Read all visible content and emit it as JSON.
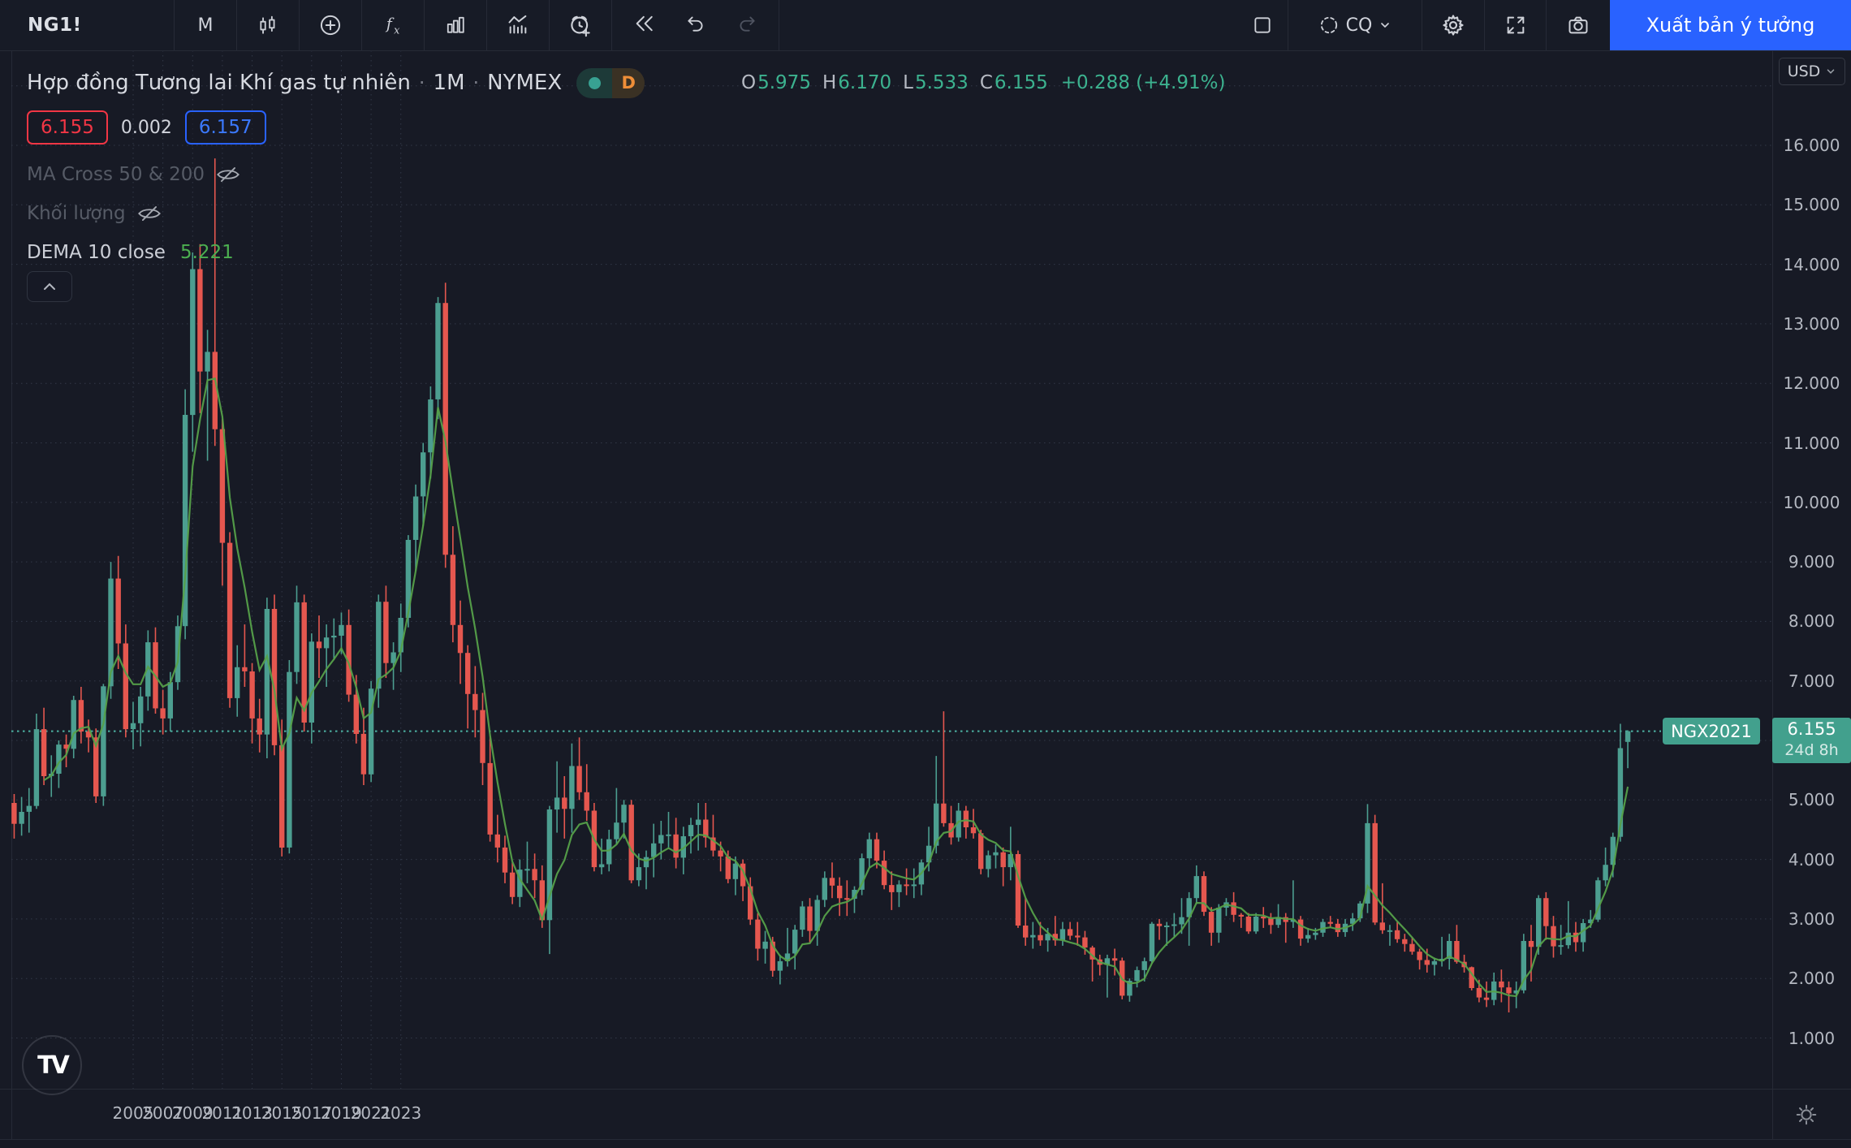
{
  "toolbar": {
    "symbol": "NG1!",
    "timeframe_label": "M",
    "layout_name": "CQ",
    "publish_button": "Xuất bản ý tưởng"
  },
  "legend": {
    "title": {
      "name": "Hợp đồng Tương lai Khí gas tự nhiên",
      "dot": "·",
      "interval": "1M",
      "exchange": "NYMEX",
      "d_badge": "D"
    },
    "ohlc": {
      "o_label": "O",
      "o": "5.975",
      "h_label": "H",
      "h": "6.170",
      "l_label": "L",
      "l": "5.533",
      "c_label": "C",
      "c": "6.155",
      "change": "+0.288 (+4.91%)"
    },
    "quote": {
      "bid": "6.155",
      "spread": "0.002",
      "ask": "6.157"
    },
    "indicators": [
      {
        "label": "MA Cross 50 & 200",
        "hidden": true
      },
      {
        "label": "Khối lượng",
        "hidden": true
      },
      {
        "label": "DEMA 10 close",
        "value": "5.221",
        "hidden": false
      }
    ]
  },
  "price_axis": {
    "currency": "USD",
    "ticks": [
      "16.000",
      "15.000",
      "14.000",
      "13.000",
      "12.000",
      "11.000",
      "10.000",
      "9.000",
      "8.000",
      "7.000",
      "6.000",
      "5.000",
      "4.000",
      "3.000",
      "2.000",
      "1.000"
    ],
    "current_price_label": "6.155",
    "countdown": "24d 8h"
  },
  "time_axis": {
    "years": [
      "2005",
      "2007",
      "2009",
      "2011",
      "2013",
      "2015",
      "2017",
      "2019",
      "2021",
      "2023"
    ]
  },
  "chart_overlay": {
    "contract_label": "NGX2021"
  },
  "branding": {
    "logo_text": "TV"
  },
  "colors": {
    "up": "#4c9e90",
    "down": "#e5574f",
    "dema_line": "#55a049",
    "current_line": "#4cb2a3",
    "badge": "#42a08d",
    "accent_blue": "#2962ff",
    "bid_red": "#f23645",
    "value_teal": "#3cb28f"
  },
  "chart_data": {
    "type": "candlestick",
    "title": "Hợp đồng Tương lai Khí gas tự nhiên",
    "symbol": "NG1!",
    "exchange": "NYMEX",
    "interval": "1M",
    "unit": "USD",
    "start_month": "2003-09",
    "ohlc": [
      [
        4.95,
        5.1,
        4.35,
        4.6
      ],
      [
        4.6,
        5.05,
        4.4,
        4.8
      ],
      [
        4.8,
        5.2,
        4.45,
        4.9
      ],
      [
        4.9,
        6.45,
        4.85,
        6.19
      ],
      [
        6.19,
        6.55,
        5.25,
        5.4
      ],
      [
        5.4,
        5.75,
        5.05,
        5.44
      ],
      [
        5.44,
        6.0,
        5.2,
        5.93
      ],
      [
        5.93,
        6.1,
        5.55,
        5.86
      ],
      [
        5.86,
        6.75,
        5.7,
        6.68
      ],
      [
        6.68,
        6.9,
        5.95,
        6.15
      ],
      [
        6.15,
        6.35,
        5.8,
        6.05
      ],
      [
        6.05,
        6.2,
        4.95,
        5.06
      ],
      [
        5.06,
        6.95,
        4.9,
        6.91
      ],
      [
        6.91,
        9.0,
        6.7,
        8.72
      ],
      [
        8.72,
        9.1,
        7.2,
        7.63
      ],
      [
        7.63,
        7.95,
        6.05,
        6.19
      ],
      [
        6.19,
        6.65,
        5.85,
        6.29
      ],
      [
        6.29,
        6.9,
        5.9,
        6.74
      ],
      [
        6.74,
        7.85,
        6.5,
        7.65
      ],
      [
        7.65,
        7.9,
        6.45,
        6.54
      ],
      [
        6.54,
        6.85,
        6.1,
        6.37
      ],
      [
        6.37,
        7.15,
        6.15,
        6.98
      ],
      [
        6.98,
        8.1,
        6.85,
        7.92
      ],
      [
        7.92,
        11.9,
        7.7,
        11.47
      ],
      [
        11.47,
        14.2,
        10.85,
        13.92
      ],
      [
        13.92,
        14.34,
        11.5,
        12.2
      ],
      [
        12.2,
        12.9,
        10.7,
        12.53
      ],
      [
        12.53,
        15.78,
        10.95,
        11.23
      ],
      [
        11.23,
        11.4,
        8.6,
        9.32
      ],
      [
        9.32,
        9.5,
        6.55,
        6.71
      ],
      [
        6.71,
        7.6,
        6.4,
        7.23
      ],
      [
        7.23,
        7.95,
        6.9,
        7.16
      ],
      [
        7.16,
        7.3,
        5.95,
        6.37
      ],
      [
        6.37,
        6.7,
        5.8,
        6.1
      ],
      [
        6.1,
        8.4,
        5.7,
        8.21
      ],
      [
        8.21,
        8.45,
        5.75,
        5.92
      ],
      [
        5.92,
        6.35,
        4.05,
        4.2
      ],
      [
        4.2,
        7.35,
        4.1,
        7.15
      ],
      [
        7.15,
        8.6,
        6.95,
        8.32
      ],
      [
        8.32,
        8.45,
        6.15,
        6.3
      ],
      [
        6.3,
        7.8,
        5.95,
        7.66
      ],
      [
        7.66,
        8.1,
        7.05,
        7.55
      ],
      [
        7.55,
        7.95,
        6.9,
        7.73
      ],
      [
        7.73,
        8.05,
        7.35,
        7.76
      ],
      [
        7.76,
        8.15,
        7.45,
        7.94
      ],
      [
        7.94,
        8.2,
        6.65,
        6.77
      ],
      [
        6.77,
        7.1,
        5.95,
        6.11
      ],
      [
        6.11,
        6.55,
        5.25,
        5.43
      ],
      [
        5.43,
        7.0,
        5.3,
        6.87
      ],
      [
        6.87,
        8.45,
        6.55,
        8.33
      ],
      [
        8.33,
        8.6,
        7.05,
        7.3
      ],
      [
        7.3,
        7.65,
        6.85,
        7.48
      ],
      [
        7.48,
        8.3,
        7.15,
        8.06
      ],
      [
        8.06,
        9.45,
        7.9,
        9.37
      ],
      [
        9.37,
        10.3,
        8.85,
        10.1
      ],
      [
        10.1,
        11.0,
        9.6,
        10.84
      ],
      [
        10.84,
        11.95,
        10.4,
        11.73
      ],
      [
        11.73,
        13.45,
        11.4,
        13.35
      ],
      [
        13.35,
        13.69,
        8.9,
        9.12
      ],
      [
        9.12,
        9.6,
        7.65,
        7.94
      ],
      [
        7.94,
        8.35,
        6.95,
        7.47
      ],
      [
        7.47,
        7.6,
        6.2,
        6.78
      ],
      [
        6.78,
        7.25,
        6.05,
        6.51
      ],
      [
        6.51,
        6.8,
        5.25,
        5.62
      ],
      [
        5.62,
        6.1,
        4.3,
        4.42
      ],
      [
        4.42,
        4.75,
        3.95,
        4.2
      ],
      [
        4.2,
        4.4,
        3.6,
        3.78
      ],
      [
        3.78,
        3.95,
        3.25,
        3.37
      ],
      [
        3.37,
        4.0,
        3.2,
        3.83
      ],
      [
        3.83,
        4.3,
        3.6,
        3.84
      ],
      [
        3.84,
        4.1,
        3.35,
        3.65
      ],
      [
        3.65,
        3.9,
        2.85,
        2.98
      ],
      [
        2.98,
        4.9,
        2.41,
        4.84
      ],
      [
        4.84,
        5.65,
        4.45,
        5.04
      ],
      [
        5.04,
        5.4,
        4.35,
        4.85
      ],
      [
        4.85,
        5.95,
        4.45,
        5.57
      ],
      [
        5.57,
        6.05,
        5.0,
        5.13
      ],
      [
        5.13,
        5.6,
        4.65,
        4.82
      ],
      [
        4.82,
        4.95,
        3.8,
        3.87
      ],
      [
        3.87,
        4.35,
        3.75,
        3.92
      ],
      [
        3.92,
        4.5,
        3.8,
        4.34
      ],
      [
        4.34,
        5.2,
        4.25,
        4.62
      ],
      [
        4.62,
        5.0,
        4.35,
        4.92
      ],
      [
        4.92,
        5.0,
        3.6,
        3.65
      ],
      [
        3.65,
        4.1,
        3.55,
        3.87
      ],
      [
        3.87,
        4.15,
        3.5,
        4.04
      ],
      [
        4.04,
        4.6,
        3.7,
        4.27
      ],
      [
        4.27,
        4.65,
        4.0,
        4.41
      ],
      [
        4.41,
        4.8,
        4.2,
        4.42
      ],
      [
        4.42,
        4.7,
        3.85,
        4.03
      ],
      [
        4.03,
        4.55,
        3.75,
        4.39
      ],
      [
        4.39,
        4.7,
        4.1,
        4.58
      ],
      [
        4.58,
        4.95,
        4.15,
        4.67
      ],
      [
        4.67,
        4.95,
        4.2,
        4.37
      ],
      [
        4.37,
        4.75,
        4.05,
        4.15
      ],
      [
        4.15,
        4.3,
        3.8,
        4.05
      ],
      [
        4.05,
        4.15,
        3.6,
        3.67
      ],
      [
        3.67,
        4.05,
        3.4,
        3.93
      ],
      [
        3.93,
        4.0,
        3.3,
        3.55
      ],
      [
        3.55,
        3.7,
        2.9,
        2.99
      ],
      [
        2.99,
        3.1,
        2.3,
        2.5
      ],
      [
        2.5,
        2.8,
        2.25,
        2.62
      ],
      [
        2.62,
        2.7,
        2.03,
        2.13
      ],
      [
        2.13,
        2.4,
        1.9,
        2.29
      ],
      [
        2.29,
        2.85,
        2.2,
        2.42
      ],
      [
        2.42,
        2.9,
        2.15,
        2.82
      ],
      [
        2.82,
        3.3,
        2.7,
        3.21
      ],
      [
        3.21,
        3.35,
        2.6,
        2.8
      ],
      [
        2.8,
        3.4,
        2.55,
        3.32
      ],
      [
        3.32,
        3.8,
        3.2,
        3.69
      ],
      [
        3.69,
        3.95,
        3.35,
        3.56
      ],
      [
        3.56,
        3.7,
        3.05,
        3.35
      ],
      [
        3.35,
        3.65,
        3.05,
        3.34
      ],
      [
        3.34,
        3.55,
        3.1,
        3.49
      ],
      [
        3.49,
        4.1,
        3.4,
        4.02
      ],
      [
        4.02,
        4.45,
        3.85,
        4.34
      ],
      [
        4.34,
        4.45,
        3.85,
        3.98
      ],
      [
        3.98,
        4.15,
        3.5,
        3.57
      ],
      [
        3.57,
        3.8,
        3.15,
        3.45
      ],
      [
        3.45,
        3.65,
        3.2,
        3.58
      ],
      [
        3.58,
        3.85,
        3.4,
        3.56
      ],
      [
        3.56,
        3.85,
        3.35,
        3.58
      ],
      [
        3.58,
        4.0,
        3.4,
        3.95
      ],
      [
        3.95,
        4.55,
        3.8,
        4.23
      ],
      [
        4.23,
        5.74,
        4.1,
        4.94
      ],
      [
        4.94,
        6.49,
        4.55,
        4.61
      ],
      [
        4.61,
        4.9,
        4.25,
        4.37
      ],
      [
        4.37,
        4.95,
        4.3,
        4.82
      ],
      [
        4.82,
        4.9,
        4.35,
        4.54
      ],
      [
        4.54,
        4.85,
        4.35,
        4.44
      ],
      [
        4.44,
        4.5,
        3.75,
        3.84
      ],
      [
        3.84,
        4.15,
        3.7,
        4.07
      ],
      [
        4.07,
        4.25,
        3.85,
        4.12
      ],
      [
        4.12,
        4.2,
        3.55,
        3.87
      ],
      [
        3.87,
        4.55,
        3.65,
        4.09
      ],
      [
        4.09,
        4.15,
        2.85,
        2.89
      ],
      [
        2.89,
        3.35,
        2.55,
        2.69
      ],
      [
        2.69,
        2.95,
        2.5,
        2.73
      ],
      [
        2.73,
        2.95,
        2.55,
        2.64
      ],
      [
        2.64,
        2.85,
        2.45,
        2.75
      ],
      [
        2.75,
        3.05,
        2.55,
        2.64
      ],
      [
        2.64,
        2.95,
        2.55,
        2.83
      ],
      [
        2.83,
        2.95,
        2.65,
        2.72
      ],
      [
        2.72,
        2.95,
        2.55,
        2.69
      ],
      [
        2.69,
        2.8,
        2.4,
        2.52
      ],
      [
        2.52,
        2.55,
        1.95,
        2.32
      ],
      [
        2.32,
        2.4,
        2.05,
        2.23
      ],
      [
        2.23,
        2.4,
        1.68,
        2.34
      ],
      [
        2.34,
        2.5,
        2.05,
        2.3
      ],
      [
        2.3,
        2.35,
        1.65,
        1.71
      ],
      [
        1.71,
        2.0,
        1.61,
        1.96
      ],
      [
        1.96,
        2.2,
        1.85,
        2.14
      ],
      [
        2.14,
        2.35,
        1.95,
        2.29
      ],
      [
        2.29,
        2.95,
        2.25,
        2.92
      ],
      [
        2.92,
        3.0,
        2.65,
        2.88
      ],
      [
        2.88,
        2.95,
        2.55,
        2.89
      ],
      [
        2.89,
        3.1,
        2.7,
        2.91
      ],
      [
        2.91,
        3.35,
        2.75,
        3.03
      ],
      [
        3.03,
        3.45,
        2.55,
        3.35
      ],
      [
        3.35,
        3.9,
        3.25,
        3.72
      ],
      [
        3.72,
        3.8,
        3.05,
        3.12
      ],
      [
        3.12,
        3.2,
        2.55,
        2.77
      ],
      [
        2.77,
        3.25,
        2.6,
        3.19
      ],
      [
        3.19,
        3.35,
        3.05,
        3.28
      ],
      [
        3.28,
        3.45,
        2.95,
        3.07
      ],
      [
        3.07,
        3.1,
        2.85,
        3.04
      ],
      [
        3.04,
        3.1,
        2.75,
        2.79
      ],
      [
        2.79,
        3.1,
        2.75,
        3.04
      ],
      [
        3.04,
        3.2,
        2.85,
        3.01
      ],
      [
        3.01,
        3.1,
        2.75,
        2.9
      ],
      [
        2.9,
        3.25,
        2.85,
        3.03
      ],
      [
        3.03,
        3.1,
        2.6,
        2.95
      ],
      [
        2.95,
        3.65,
        2.85,
        2.99
      ],
      [
        2.99,
        3.05,
        2.55,
        2.67
      ],
      [
        2.67,
        2.85,
        2.6,
        2.73
      ],
      [
        2.73,
        2.85,
        2.65,
        2.77
      ],
      [
        2.77,
        3.0,
        2.7,
        2.95
      ],
      [
        2.95,
        3.05,
        2.85,
        2.92
      ],
      [
        2.92,
        3.0,
        2.7,
        2.78
      ],
      [
        2.78,
        3.0,
        2.7,
        2.92
      ],
      [
        2.92,
        3.1,
        2.8,
        3.01
      ],
      [
        3.01,
        3.3,
        2.95,
        3.26
      ],
      [
        3.26,
        4.93,
        3.1,
        4.61
      ],
      [
        4.61,
        4.75,
        2.9,
        2.94
      ],
      [
        2.94,
        3.6,
        2.75,
        2.81
      ],
      [
        2.81,
        2.9,
        2.55,
        2.81
      ],
      [
        2.81,
        2.95,
        2.6,
        2.66
      ],
      [
        2.66,
        2.75,
        2.45,
        2.58
      ],
      [
        2.58,
        2.7,
        2.4,
        2.45
      ],
      [
        2.45,
        2.5,
        2.15,
        2.31
      ],
      [
        2.31,
        2.5,
        2.1,
        2.23
      ],
      [
        2.23,
        2.35,
        2.05,
        2.29
      ],
      [
        2.29,
        2.7,
        2.2,
        2.33
      ],
      [
        2.33,
        2.75,
        2.15,
        2.63
      ],
      [
        2.63,
        2.9,
        2.25,
        2.28
      ],
      [
        2.28,
        2.4,
        2.1,
        2.19
      ],
      [
        2.19,
        2.2,
        1.8,
        1.84
      ],
      [
        1.84,
        1.98,
        1.6,
        1.68
      ],
      [
        1.68,
        1.95,
        1.52,
        1.64
      ],
      [
        1.64,
        2.1,
        1.55,
        1.95
      ],
      [
        1.95,
        2.15,
        1.6,
        1.85
      ],
      [
        1.85,
        1.95,
        1.43,
        1.75
      ],
      [
        1.75,
        1.95,
        1.5,
        1.8
      ],
      [
        1.8,
        2.75,
        1.75,
        2.63
      ],
      [
        2.63,
        2.9,
        1.95,
        2.53
      ],
      [
        2.53,
        3.4,
        2.4,
        3.35
      ],
      [
        3.35,
        3.45,
        2.65,
        2.88
      ],
      [
        2.88,
        3.05,
        2.35,
        2.54
      ],
      [
        2.54,
        2.9,
        2.4,
        2.56
      ],
      [
        2.56,
        3.3,
        2.5,
        2.77
      ],
      [
        2.77,
        2.95,
        2.45,
        2.61
      ],
      [
        2.61,
        3.0,
        2.45,
        2.93
      ],
      [
        2.93,
        3.15,
        2.85,
        2.99
      ],
      [
        2.99,
        3.7,
        2.95,
        3.65
      ],
      [
        3.65,
        4.2,
        3.55,
        3.91
      ],
      [
        3.91,
        4.45,
        3.7,
        4.38
      ],
      [
        4.38,
        6.28,
        4.3,
        5.87
      ],
      [
        5.975,
        6.17,
        5.533,
        6.155
      ]
    ],
    "current": {
      "open": 5.975,
      "high": 6.17,
      "low": 5.533,
      "close": 6.155,
      "change": 0.288,
      "change_pct": 4.91,
      "contract": "NGX2021",
      "countdown": "24d 8h"
    },
    "indicators": {
      "dema": {
        "period": 10,
        "source": "close",
        "last": 5.221
      },
      "hidden": [
        "MA Cross 50 & 200",
        "Khối lượng"
      ]
    },
    "y_axis": {
      "visible_min": 0.15,
      "visible_max": 17.6,
      "tick_step": 1,
      "ticks": [
        1,
        2,
        3,
        4,
        5,
        6,
        7,
        8,
        9,
        10,
        11,
        12,
        13,
        14,
        15,
        16
      ]
    },
    "x_axis": {
      "tick_years": [
        2005,
        2007,
        2009,
        2011,
        2013,
        2015,
        2017,
        2019,
        2021,
        2023
      ]
    },
    "grid": "dotted",
    "legend_position": "top-left"
  }
}
